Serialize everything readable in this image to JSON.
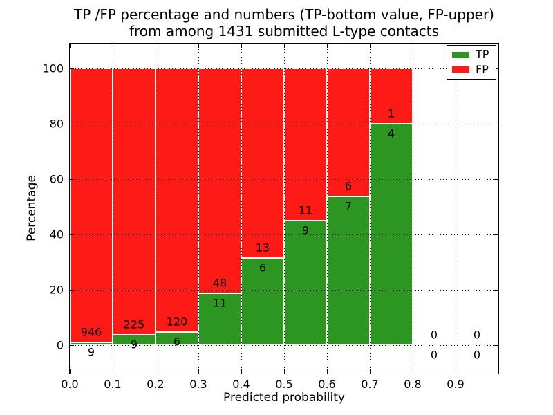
{
  "chart_data": {
    "type": "bar",
    "stacked": true,
    "title_lines": [
      "TP /FP percentage and numbers (TP-bottom value, FP-upper)",
      "from among 1431 submitted L-type contacts"
    ],
    "total_submitted_contacts": 1431,
    "xlabel": "Predicted probability",
    "ylabel": "Percentage",
    "x_tick_labels": [
      "0.0",
      "0.1",
      "0.2",
      "0.3",
      "0.4",
      "0.5",
      "0.6",
      "0.7",
      "0.8",
      "0.9"
    ],
    "y_ticks": [
      0,
      20,
      40,
      60,
      80,
      100
    ],
    "y_tick_labels": [
      "0",
      "20",
      "40",
      "60",
      "80",
      "100"
    ],
    "xlim": [
      0.0,
      1.0
    ],
    "ylim": [
      -10.25,
      109.25
    ],
    "grid": {
      "style": "dotted",
      "drawn_above_bars": true
    },
    "legend": {
      "position": "upper right",
      "entries": [
        {
          "label": "TP",
          "color": "#2c9620"
        },
        {
          "label": "FP",
          "color": "#fe1a15"
        }
      ]
    },
    "bins": [
      {
        "range": [
          0.0,
          0.1
        ],
        "tp": 9,
        "fp": 946,
        "tp_pct": 0.94,
        "fp_pct": 99.06
      },
      {
        "range": [
          0.1,
          0.2
        ],
        "tp": 9,
        "fp": 225,
        "tp_pct": 3.85,
        "fp_pct": 96.15
      },
      {
        "range": [
          0.2,
          0.3
        ],
        "tp": 6,
        "fp": 120,
        "tp_pct": 4.76,
        "fp_pct": 95.24
      },
      {
        "range": [
          0.3,
          0.4
        ],
        "tp": 11,
        "fp": 48,
        "tp_pct": 18.64,
        "fp_pct": 81.36
      },
      {
        "range": [
          0.4,
          0.5
        ],
        "tp": 6,
        "fp": 13,
        "tp_pct": 31.58,
        "fp_pct": 68.42
      },
      {
        "range": [
          0.5,
          0.6
        ],
        "tp": 9,
        "fp": 11,
        "tp_pct": 45.0,
        "fp_pct": 55.0
      },
      {
        "range": [
          0.6,
          0.7
        ],
        "tp": 7,
        "fp": 6,
        "tp_pct": 53.85,
        "fp_pct": 46.15
      },
      {
        "range": [
          0.7,
          0.8
        ],
        "tp": 4,
        "fp": 1,
        "tp_pct": 80.0,
        "fp_pct": 20.0
      },
      {
        "range": [
          0.8,
          0.9
        ],
        "tp": 0,
        "fp": 0,
        "tp_pct": null,
        "fp_pct": null
      },
      {
        "range": [
          0.9,
          1.0
        ],
        "tp": 0,
        "fp": 0,
        "tp_pct": null,
        "fp_pct": null
      }
    ],
    "colors": {
      "tp": "#2c9620",
      "fp": "#fe1a15",
      "grid": "#000000",
      "background": "#ffffff",
      "text": "#000000"
    }
  }
}
